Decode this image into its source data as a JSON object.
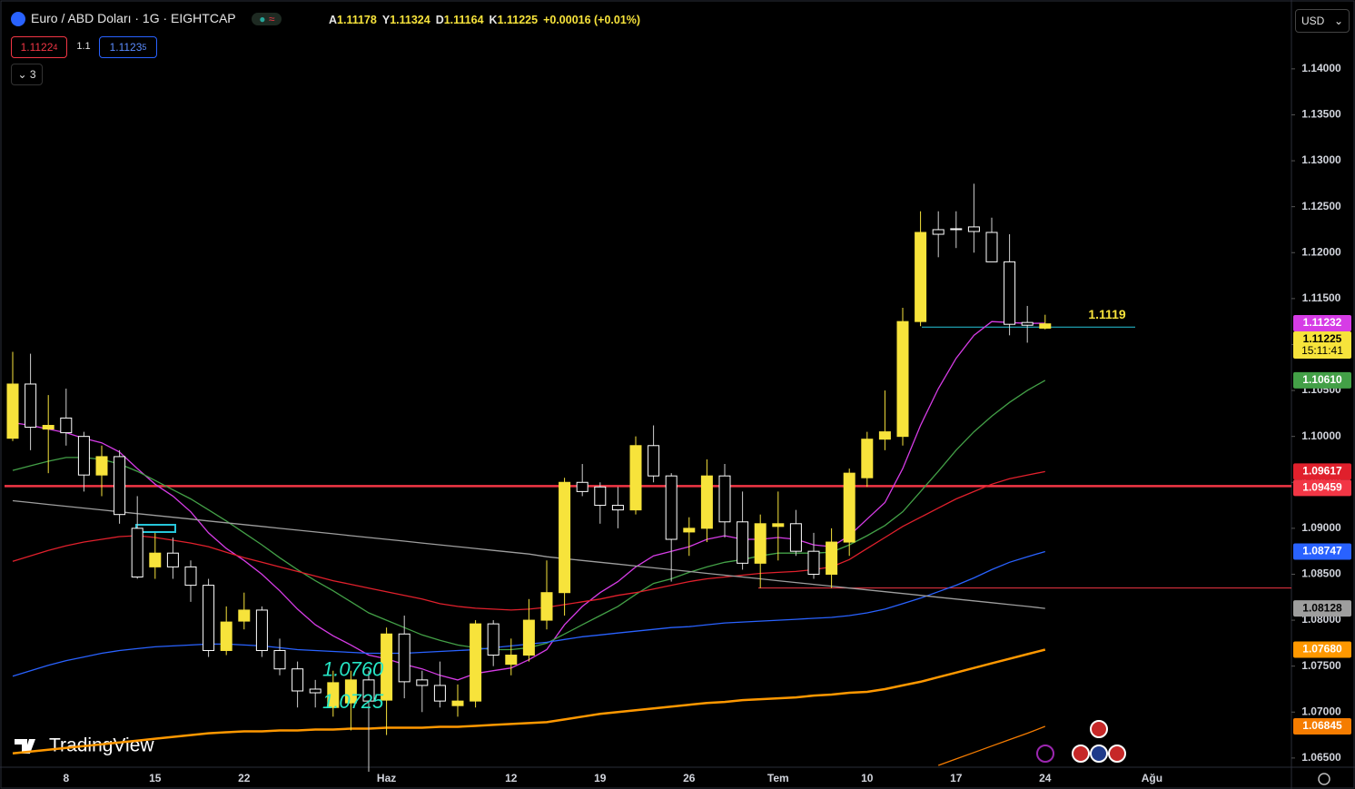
{
  "header": {
    "symbol": "Euro / ABD Doları · 1G · EIGHTCAP",
    "ohlc": [
      {
        "label": "A",
        "value": "1.11178"
      },
      {
        "label": "Y",
        "value": "1.11324"
      },
      {
        "label": "D",
        "value": "1.11164"
      },
      {
        "label": "K",
        "value": "1.11225"
      }
    ],
    "change": "+0.00016 (+0.01%)",
    "sell": {
      "main": "1.1122",
      "pip": "4"
    },
    "spread": "1.1",
    "buy": {
      "main": "1.1123",
      "pip": "5"
    },
    "indicators": "3",
    "currency": "USD",
    "watermark": "TradingView"
  },
  "chart_data": {
    "type": "candlestick",
    "categories": [
      null,
      null,
      null,
      "8",
      null,
      null,
      null,
      null,
      "15",
      null,
      null,
      null,
      null,
      "22",
      null,
      null,
      null,
      null,
      null,
      null,
      null,
      "Haz",
      null,
      null,
      null,
      null,
      null,
      null,
      "12",
      null,
      null,
      null,
      null,
      "19",
      null,
      null,
      null,
      null,
      "26",
      null,
      null,
      null,
      null,
      "Tem",
      null,
      null,
      null,
      null,
      "10",
      null,
      null,
      null,
      null,
      "17",
      null,
      null,
      null,
      null,
      "24",
      null,
      null,
      null,
      null,
      null,
      "Ağu"
    ],
    "open": [
      1.0998,
      1.1057,
      1.1008,
      1.102,
      1.1,
      1.0958,
      1.0978,
      1.09,
      1.0858,
      1.0873,
      1.0858,
      1.0838,
      1.0767,
      1.0799,
      1.0811,
      1.0767,
      1.0747,
      1.0725,
      1.0705,
      1.071,
      1.0735,
      1.0713,
      1.0785,
      1.0735,
      1.0729,
      1.0707,
      1.0712,
      1.0796,
      1.0752,
      1.0762,
      1.08,
      1.083,
      1.095,
      1.0945,
      1.0925,
      1.092,
      1.099,
      1.0957,
      1.0896,
      1.09,
      1.0957,
      1.0907,
      1.0862,
      1.0902,
      1.0905,
      1.0875,
      1.085,
      1.0885,
      1.0955,
      1.0997,
      1.1,
      1.1125,
      1.1225,
      1.1226,
      1.1228,
      1.1222,
      1.119,
      1.1124,
      1.11178,
      null,
      null,
      null,
      null,
      null,
      null
    ],
    "high": [
      1.1092,
      1.109,
      1.1045,
      1.1052,
      1.1005,
      1.099,
      1.0985,
      1.0935,
      1.0895,
      1.089,
      1.0865,
      1.0845,
      1.0815,
      1.083,
      1.0815,
      1.078,
      1.0755,
      1.0735,
      1.0745,
      1.0745,
      1.0745,
      1.0792,
      1.0805,
      1.0745,
      1.0755,
      1.073,
      1.08,
      1.08,
      1.078,
      1.0823,
      1.0865,
      1.0955,
      1.097,
      1.095,
      1.0945,
      1.1,
      1.1012,
      1.096,
      1.0912,
      1.0975,
      1.097,
      1.094,
      1.0915,
      1.094,
      1.092,
      1.0895,
      1.09,
      1.0965,
      1.1005,
      1.105,
      1.114,
      1.1245,
      1.1245,
      1.1245,
      1.1275,
      1.1238,
      1.122,
      1.1142,
      1.11324,
      null,
      null,
      null,
      null,
      null,
      null
    ],
    "low": [
      1.0995,
      1.0985,
      1.096,
      1.099,
      1.094,
      1.0935,
      1.0905,
      1.0845,
      1.0845,
      1.0845,
      1.082,
      1.076,
      1.0762,
      1.079,
      1.076,
      1.074,
      1.0705,
      1.0705,
      1.0695,
      1.068,
      1.0635,
      1.0675,
      1.0715,
      1.07,
      1.0705,
      1.0695,
      1.0705,
      1.075,
      1.074,
      1.0755,
      1.079,
      1.0805,
      1.0935,
      1.0905,
      1.09,
      1.0915,
      1.095,
      1.0842,
      1.087,
      1.0885,
      1.089,
      1.0855,
      1.0835,
      1.0865,
      1.087,
      1.0845,
      1.0835,
      1.087,
      1.0945,
      1.0985,
      1.099,
      1.112,
      1.1195,
      1.1205,
      1.12,
      1.119,
      1.111,
      1.1102,
      1.11164,
      null,
      null,
      null,
      null,
      null,
      null
    ],
    "close": [
      1.1057,
      1.101,
      1.1012,
      1.1004,
      1.0958,
      1.0978,
      1.0915,
      1.0847,
      1.0873,
      1.0858,
      1.0838,
      1.0767,
      1.0798,
      1.0811,
      1.0767,
      1.0747,
      1.0723,
      1.0721,
      1.0732,
      1.0735,
      1.0712,
      1.0785,
      1.0733,
      1.0729,
      1.0712,
      1.0712,
      1.0796,
      1.0762,
      1.0762,
      1.08,
      1.083,
      1.095,
      1.094,
      1.0925,
      1.092,
      1.099,
      1.0957,
      1.0888,
      1.09,
      1.0957,
      1.0907,
      1.0862,
      1.0905,
      1.0905,
      1.0875,
      1.085,
      1.0885,
      1.096,
      1.0997,
      1.1005,
      1.1125,
      1.1222,
      1.122,
      1.1225,
      1.1223,
      1.119,
      1.1122,
      1.1121,
      1.11225,
      null,
      null,
      null,
      null,
      null,
      null
    ],
    "up_color": "#f7e33b",
    "down_color": "#ffffff",
    "countdown": "15:11:41",
    "ylim": [
      1.064,
      1.147
    ],
    "yticks": [
      {
        "value": 1.065,
        "label": "1.06500"
      },
      {
        "value": 1.07,
        "label": "1.07000"
      },
      {
        "value": 1.075,
        "label": "1.07500"
      },
      {
        "value": 1.08,
        "label": "1.08000"
      },
      {
        "value": 1.085,
        "label": "1.08500"
      },
      {
        "value": 1.09,
        "label": "1.09000"
      },
      {
        "value": 1.095,
        "label": "1.09500"
      },
      {
        "value": 1.1,
        "label": "1.10000"
      },
      {
        "value": 1.105,
        "label": "1.10500"
      },
      {
        "value": 1.11,
        "label": "1.11000"
      },
      {
        "value": 1.115,
        "label": "1.11500"
      },
      {
        "value": 1.12,
        "label": "1.12000"
      },
      {
        "value": 1.125,
        "label": "1.12500"
      },
      {
        "value": 1.13,
        "label": "1.13000"
      },
      {
        "value": 1.135,
        "label": "1.13500"
      },
      {
        "value": 1.14,
        "label": "1.14000"
      }
    ],
    "series": [
      {
        "color": "#d63ce6",
        "values": [
          1.1015,
          1.1012,
          1.1008,
          1.1004,
          1.0998,
          1.0993,
          1.0983,
          1.0965,
          1.0948,
          1.0935,
          1.0918,
          1.0895,
          1.0878,
          1.0865,
          1.085,
          1.0832,
          1.0812,
          1.0795,
          1.0783,
          1.0773,
          1.0762,
          1.0758,
          1.0752,
          1.0747,
          1.074,
          1.0735,
          1.0742,
          1.0745,
          1.0748,
          1.0757,
          1.0768,
          1.0795,
          1.0815,
          1.083,
          1.0842,
          1.0858,
          1.087,
          1.0875,
          1.088,
          1.0888,
          1.0892,
          1.0888,
          1.0888,
          1.089,
          1.0888,
          1.0882,
          1.088,
          1.0892,
          1.091,
          1.0928,
          1.0965,
          1.1012,
          1.1052,
          1.1085,
          1.111,
          1.1125,
          1.1124,
          1.1123,
          1.11232,
          null,
          null,
          null,
          null,
          null,
          null
        ]
      },
      {
        "color": "#43a047",
        "last_label": "1.10610",
        "values": [
          1.0963,
          1.0968,
          1.0973,
          1.0977,
          1.0977,
          1.0975,
          1.097,
          1.0962,
          1.0952,
          1.0942,
          1.0932,
          1.092,
          1.0908,
          1.0895,
          1.0882,
          1.0868,
          1.0855,
          1.0843,
          1.0832,
          1.082,
          1.0808,
          1.08,
          1.0792,
          1.0784,
          1.0778,
          1.0773,
          1.077,
          1.0768,
          1.0768,
          1.077,
          1.0775,
          1.0785,
          1.0795,
          1.0805,
          1.0815,
          1.0828,
          1.084,
          1.0845,
          1.0852,
          1.0858,
          1.0863,
          1.0866,
          1.087,
          1.0873,
          1.0873,
          1.0873,
          1.0874,
          1.0882,
          1.0892,
          1.0903,
          1.0918,
          1.094,
          1.0962,
          1.0985,
          1.1005,
          1.1022,
          1.1037,
          1.105,
          1.1061,
          null,
          null,
          null,
          null,
          null,
          null
        ]
      },
      {
        "color": "#e0202c",
        "values": [
          1.0864,
          1.087,
          1.0876,
          1.0881,
          1.0885,
          1.0888,
          1.0891,
          1.0892,
          1.089,
          1.0887,
          1.0884,
          1.088,
          1.0874,
          1.0868,
          1.0863,
          1.0858,
          1.0853,
          1.0848,
          1.0843,
          1.0839,
          1.0835,
          1.0831,
          1.0827,
          1.0823,
          1.0818,
          1.0815,
          1.0813,
          1.0812,
          1.0811,
          1.0812,
          1.0814,
          1.0817,
          1.082,
          1.0823,
          1.0827,
          1.083,
          1.0834,
          1.0838,
          1.0842,
          1.0845,
          1.0847,
          1.0849,
          1.0851,
          1.0852,
          1.0853,
          1.0855,
          1.0858,
          1.0866,
          1.0878,
          1.089,
          1.0902,
          1.0912,
          1.0922,
          1.0932,
          1.094,
          1.0948,
          1.0954,
          1.0958,
          1.09617,
          null,
          null,
          null,
          null,
          null,
          null
        ]
      },
      {
        "color": "#2962ff",
        "values": [
          1.0739,
          1.0745,
          1.0751,
          1.0756,
          1.076,
          1.0764,
          1.0767,
          1.0769,
          1.0771,
          1.0772,
          1.0773,
          1.0774,
          1.0774,
          1.0773,
          1.0772,
          1.077,
          1.0768,
          1.0767,
          1.0766,
          1.0765,
          1.0764,
          1.0764,
          1.0764,
          1.0765,
          1.0766,
          1.0767,
          1.0768,
          1.077,
          1.0772,
          1.0774,
          1.0776,
          1.0779,
          1.0782,
          1.0784,
          1.0786,
          1.0788,
          1.079,
          1.0792,
          1.0793,
          1.0795,
          1.0797,
          1.0798,
          1.0799,
          1.08,
          1.0801,
          1.0802,
          1.0803,
          1.0805,
          1.0808,
          1.0812,
          1.0818,
          1.0824,
          1.0831,
          1.0838,
          1.0846,
          1.0855,
          1.0863,
          1.0869,
          1.08747,
          null,
          null,
          null,
          null,
          null,
          null
        ]
      },
      {
        "color": "#ff9800",
        "last_label": "1.07680",
        "values": [
          1.0655,
          1.0657,
          1.0659,
          1.0661,
          1.0663,
          1.0665,
          1.0667,
          1.0669,
          1.0671,
          1.0673,
          1.0675,
          1.0677,
          1.0678,
          1.0679,
          1.0679,
          1.068,
          1.068,
          1.0681,
          1.0681,
          1.0682,
          1.0682,
          1.0683,
          1.0683,
          1.0683,
          1.0684,
          1.0684,
          1.0685,
          1.0686,
          1.0687,
          1.0688,
          1.0689,
          1.0692,
          1.0695,
          1.0698,
          1.07,
          1.0702,
          1.0704,
          1.0706,
          1.0708,
          1.071,
          1.0711,
          1.0713,
          1.0714,
          1.0715,
          1.0716,
          1.0718,
          1.0719,
          1.0721,
          1.0722,
          1.0725,
          1.0729,
          1.0733,
          1.0738,
          1.0743,
          1.0748,
          1.0753,
          1.0758,
          1.0763,
          1.0768,
          null,
          null,
          null,
          null,
          null,
          null
        ]
      },
      {
        "color": "#9e9e9e",
        "values": [
          1.093,
          1.0928,
          1.0926,
          1.0924,
          1.0922,
          1.092,
          1.0918,
          1.0916,
          1.0914,
          1.0912,
          1.091,
          1.0908,
          1.0906,
          1.0904,
          1.0902,
          1.09,
          1.0898,
          1.0896,
          1.0894,
          1.0892,
          1.089,
          1.0888,
          1.0886,
          1.0884,
          1.0882,
          1.088,
          1.0878,
          1.0876,
          1.0874,
          1.0872,
          1.0869,
          1.0867,
          1.0865,
          1.0863,
          1.0861,
          1.0859,
          1.0857,
          1.0855,
          1.0853,
          1.0851,
          1.0849,
          1.0847,
          1.0845,
          1.0843,
          1.0841,
          1.0839,
          1.0837,
          1.0835,
          1.0833,
          1.0831,
          1.0829,
          1.0827,
          1.0825,
          1.0823,
          1.0821,
          1.0819,
          1.0817,
          1.0815,
          1.08128,
          null,
          null,
          null,
          null,
          null,
          null
        ]
      },
      {
        "color": "#f57c00",
        "values": [
          null,
          null,
          null,
          null,
          null,
          null,
          null,
          null,
          null,
          null,
          null,
          null,
          null,
          null,
          null,
          null,
          null,
          null,
          null,
          null,
          null,
          null,
          null,
          null,
          null,
          null,
          null,
          null,
          null,
          null,
          null,
          null,
          null,
          null,
          null,
          null,
          null,
          null,
          null,
          null,
          null,
          null,
          null,
          null,
          null,
          null,
          null,
          null,
          null,
          null,
          null,
          null,
          1.0642,
          1.0649,
          1.0656,
          1.0663,
          1.067,
          1.0677,
          1.06845,
          null,
          null,
          null,
          null,
          null,
          null
        ]
      }
    ],
    "hlines": [
      {
        "value": 1.09459,
        "color": "#f23645"
      },
      {
        "value": 1.0835,
        "color": "#f23645"
      },
      {
        "value": 1.1119,
        "color": "#26c6da"
      }
    ],
    "annotations": [
      {
        "value": 1.076,
        "label": "1.0760"
      },
      {
        "value": 1.0725,
        "label": "1.0725"
      }
    ]
  }
}
